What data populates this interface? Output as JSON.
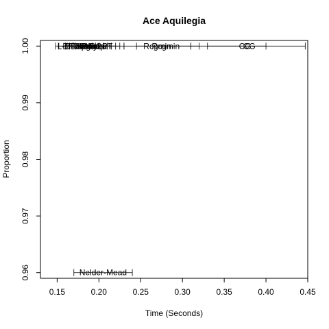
{
  "chart_data": {
    "type": "scatter",
    "title": "Ace Aquilegia",
    "xlabel": "Time (Seconds)",
    "ylabel": "Proportion",
    "xlim": [
      0.13,
      0.45
    ],
    "ylim": [
      0.959,
      1.001
    ],
    "xticks": [
      0.15,
      0.2,
      0.25,
      0.3,
      0.35,
      0.4,
      0.45
    ],
    "xtick_labels": [
      "0.15",
      "0.20",
      "0.25",
      "0.30",
      "0.35",
      "0.40",
      "0.45"
    ],
    "yticks": [
      0.96,
      0.97,
      0.98,
      0.99,
      1.0
    ],
    "ytick_labels": [
      "0.96",
      "0.97",
      "0.98",
      "0.99",
      "1.00"
    ],
    "grid": false,
    "points": [
      {
        "label": "BFGS",
        "x": 0.17,
        "y": 1.0,
        "xmin": 0.148,
        "xmax": 0.192
      },
      {
        "label": "L-BFGS-B",
        "x": 0.173,
        "y": 1.0,
        "xmin": 0.152,
        "xmax": 0.196
      },
      {
        "label": "nlminb",
        "x": 0.178,
        "y": 1.0,
        "xmin": 0.158,
        "xmax": 0.2
      },
      {
        "label": "spg",
        "x": 0.182,
        "y": 1.0,
        "xmin": 0.16,
        "xmax": 0.205
      },
      {
        "label": "ucminf",
        "x": 0.186,
        "y": 1.0,
        "xmin": 0.162,
        "xmax": 0.21
      },
      {
        "label": "newuoa",
        "x": 0.19,
        "y": 1.0,
        "xmin": 0.165,
        "xmax": 0.215
      },
      {
        "label": "bobyqa",
        "x": 0.193,
        "y": 1.0,
        "xmin": 0.168,
        "xmax": 0.22
      },
      {
        "label": "Rvmmin",
        "x": 0.196,
        "y": 1.0,
        "xmin": 0.17,
        "xmax": 0.225
      },
      {
        "label": "NLOPT",
        "x": 0.2,
        "y": 1.0,
        "xmin": 0.172,
        "xmax": 0.23
      },
      {
        "label": "Rcgmin",
        "x": 0.27,
        "y": 1.0,
        "xmin": 0.23,
        "xmax": 0.31
      },
      {
        "label": "Rcgmin",
        "x": 0.28,
        "y": 1.0,
        "xmin": 0.245,
        "xmax": 0.32
      },
      {
        "label": "CG",
        "x": 0.375,
        "y": 1.0,
        "xmin": 0.31,
        "xmax": 0.447
      },
      {
        "label": "CG",
        "x": 0.38,
        "y": 1.0,
        "xmin": 0.33,
        "xmax": 0.4
      },
      {
        "label": "Nelder-Mead",
        "x": 0.205,
        "y": 0.96,
        "xmin": 0.17,
        "xmax": 0.24
      }
    ]
  }
}
